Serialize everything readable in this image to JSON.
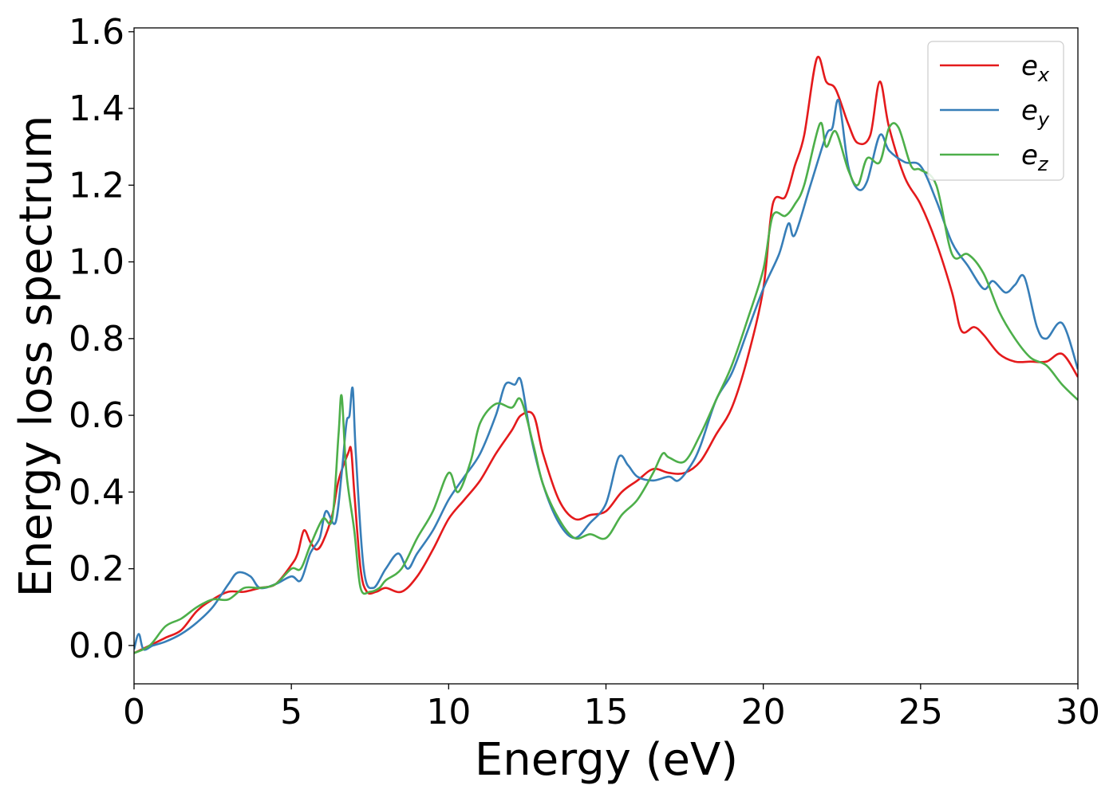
{
  "chart_data": {
    "type": "line",
    "xlabel": "Energy (eV)",
    "ylabel": "Energy loss spectrum",
    "xlim": [
      0,
      30
    ],
    "ylim": [
      -0.1,
      1.61
    ],
    "x_ticks": [
      "0",
      "5",
      "10",
      "15",
      "20",
      "25",
      "30"
    ],
    "y_ticks": [
      "0.0",
      "0.2",
      "0.4",
      "0.6",
      "0.8",
      "1.0",
      "1.2",
      "1.4",
      "1.6"
    ],
    "grid": false,
    "legend_position": "top-right",
    "series": [
      {
        "name": "e",
        "subscript": "x",
        "color": "#e41a1c",
        "points": [
          [
            0,
            -0.02
          ],
          [
            0.5,
            0.0
          ],
          [
            1,
            0.02
          ],
          [
            1.5,
            0.04
          ],
          [
            2,
            0.09
          ],
          [
            2.5,
            0.12
          ],
          [
            3,
            0.14
          ],
          [
            3.5,
            0.14
          ],
          [
            4,
            0.15
          ],
          [
            4.5,
            0.16
          ],
          [
            5,
            0.21
          ],
          [
            5.2,
            0.24
          ],
          [
            5.4,
            0.3
          ],
          [
            5.6,
            0.27
          ],
          [
            5.8,
            0.25
          ],
          [
            6,
            0.27
          ],
          [
            6.3,
            0.34
          ],
          [
            6.5,
            0.43
          ],
          [
            6.8,
            0.5
          ],
          [
            6.9,
            0.51
          ],
          [
            7,
            0.4
          ],
          [
            7.2,
            0.2
          ],
          [
            7.4,
            0.14
          ],
          [
            7.7,
            0.14
          ],
          [
            8,
            0.15
          ],
          [
            8.5,
            0.14
          ],
          [
            9,
            0.18
          ],
          [
            9.5,
            0.25
          ],
          [
            10,
            0.33
          ],
          [
            10.5,
            0.38
          ],
          [
            11,
            0.43
          ],
          [
            11.5,
            0.5
          ],
          [
            12,
            0.56
          ],
          [
            12.3,
            0.6
          ],
          [
            12.7,
            0.6
          ],
          [
            13,
            0.5
          ],
          [
            13.5,
            0.38
          ],
          [
            14,
            0.33
          ],
          [
            14.5,
            0.34
          ],
          [
            15,
            0.35
          ],
          [
            15.5,
            0.4
          ],
          [
            16,
            0.43
          ],
          [
            16.5,
            0.46
          ],
          [
            17,
            0.45
          ],
          [
            17.5,
            0.45
          ],
          [
            18,
            0.48
          ],
          [
            18.5,
            0.55
          ],
          [
            19,
            0.62
          ],
          [
            19.5,
            0.75
          ],
          [
            20,
            0.93
          ],
          [
            20.3,
            1.15
          ],
          [
            20.7,
            1.17
          ],
          [
            21,
            1.25
          ],
          [
            21.3,
            1.33
          ],
          [
            21.7,
            1.53
          ],
          [
            22,
            1.47
          ],
          [
            22.3,
            1.45
          ],
          [
            22.7,
            1.36
          ],
          [
            23,
            1.31
          ],
          [
            23.4,
            1.33
          ],
          [
            23.7,
            1.47
          ],
          [
            24,
            1.35
          ],
          [
            24.5,
            1.22
          ],
          [
            25,
            1.15
          ],
          [
            25.5,
            1.05
          ],
          [
            26,
            0.92
          ],
          [
            26.3,
            0.82
          ],
          [
            26.7,
            0.83
          ],
          [
            27,
            0.81
          ],
          [
            27.5,
            0.76
          ],
          [
            28,
            0.74
          ],
          [
            28.5,
            0.74
          ],
          [
            29,
            0.74
          ],
          [
            29.5,
            0.76
          ],
          [
            30,
            0.7
          ]
        ]
      },
      {
        "name": "e",
        "subscript": "y",
        "color": "#377eb8",
        "points": [
          [
            0,
            -0.01
          ],
          [
            0.15,
            0.03
          ],
          [
            0.3,
            -0.01
          ],
          [
            0.6,
            0.0
          ],
          [
            1,
            0.01
          ],
          [
            1.5,
            0.03
          ],
          [
            2,
            0.06
          ],
          [
            2.5,
            0.1
          ],
          [
            3,
            0.16
          ],
          [
            3.3,
            0.19
          ],
          [
            3.7,
            0.18
          ],
          [
            4,
            0.15
          ],
          [
            4.5,
            0.16
          ],
          [
            5,
            0.18
          ],
          [
            5.3,
            0.17
          ],
          [
            5.6,
            0.24
          ],
          [
            5.9,
            0.28
          ],
          [
            6.1,
            0.35
          ],
          [
            6.4,
            0.32
          ],
          [
            6.6,
            0.45
          ],
          [
            6.75,
            0.58
          ],
          [
            6.85,
            0.6
          ],
          [
            6.95,
            0.67
          ],
          [
            7.05,
            0.5
          ],
          [
            7.3,
            0.2
          ],
          [
            7.6,
            0.15
          ],
          [
            8,
            0.2
          ],
          [
            8.4,
            0.24
          ],
          [
            8.7,
            0.2
          ],
          [
            9,
            0.24
          ],
          [
            9.5,
            0.3
          ],
          [
            10,
            0.38
          ],
          [
            10.5,
            0.44
          ],
          [
            11,
            0.5
          ],
          [
            11.5,
            0.6
          ],
          [
            11.8,
            0.68
          ],
          [
            12.1,
            0.68
          ],
          [
            12.3,
            0.69
          ],
          [
            12.6,
            0.55
          ],
          [
            13,
            0.42
          ],
          [
            13.5,
            0.32
          ],
          [
            14,
            0.28
          ],
          [
            14.5,
            0.32
          ],
          [
            15,
            0.37
          ],
          [
            15.4,
            0.49
          ],
          [
            15.7,
            0.47
          ],
          [
            16,
            0.44
          ],
          [
            16.5,
            0.43
          ],
          [
            17,
            0.44
          ],
          [
            17.3,
            0.43
          ],
          [
            17.7,
            0.47
          ],
          [
            18,
            0.52
          ],
          [
            18.5,
            0.64
          ],
          [
            19,
            0.71
          ],
          [
            19.5,
            0.82
          ],
          [
            20,
            0.93
          ],
          [
            20.5,
            1.02
          ],
          [
            20.8,
            1.1
          ],
          [
            21,
            1.07
          ],
          [
            21.5,
            1.2
          ],
          [
            22,
            1.33
          ],
          [
            22.2,
            1.35
          ],
          [
            22.4,
            1.42
          ],
          [
            22.7,
            1.25
          ],
          [
            23,
            1.19
          ],
          [
            23.3,
            1.21
          ],
          [
            23.7,
            1.33
          ],
          [
            24,
            1.29
          ],
          [
            24.5,
            1.26
          ],
          [
            25,
            1.25
          ],
          [
            25.5,
            1.16
          ],
          [
            26,
            1.05
          ],
          [
            26.5,
            0.99
          ],
          [
            27,
            0.93
          ],
          [
            27.3,
            0.95
          ],
          [
            27.7,
            0.92
          ],
          [
            28,
            0.94
          ],
          [
            28.3,
            0.96
          ],
          [
            28.7,
            0.83
          ],
          [
            29,
            0.8
          ],
          [
            29.5,
            0.84
          ],
          [
            30,
            0.72
          ]
        ]
      },
      {
        "name": "e",
        "subscript": "z",
        "color": "#4daf4a",
        "points": [
          [
            0,
            -0.02
          ],
          [
            0.5,
            0.0
          ],
          [
            1,
            0.05
          ],
          [
            1.5,
            0.07
          ],
          [
            2,
            0.1
          ],
          [
            2.5,
            0.12
          ],
          [
            3,
            0.12
          ],
          [
            3.5,
            0.15
          ],
          [
            4,
            0.15
          ],
          [
            4.5,
            0.16
          ],
          [
            5,
            0.2
          ],
          [
            5.3,
            0.2
          ],
          [
            5.6,
            0.26
          ],
          [
            6,
            0.33
          ],
          [
            6.3,
            0.33
          ],
          [
            6.5,
            0.55
          ],
          [
            6.6,
            0.65
          ],
          [
            6.75,
            0.45
          ],
          [
            7,
            0.3
          ],
          [
            7.2,
            0.15
          ],
          [
            7.5,
            0.14
          ],
          [
            7.8,
            0.15
          ],
          [
            8,
            0.17
          ],
          [
            8.5,
            0.2
          ],
          [
            9,
            0.28
          ],
          [
            9.5,
            0.35
          ],
          [
            10,
            0.45
          ],
          [
            10.3,
            0.4
          ],
          [
            10.7,
            0.48
          ],
          [
            11,
            0.58
          ],
          [
            11.5,
            0.63
          ],
          [
            12,
            0.62
          ],
          [
            12.3,
            0.64
          ],
          [
            12.7,
            0.52
          ],
          [
            13,
            0.42
          ],
          [
            13.5,
            0.33
          ],
          [
            14,
            0.28
          ],
          [
            14.5,
            0.29
          ],
          [
            15,
            0.28
          ],
          [
            15.5,
            0.34
          ],
          [
            16,
            0.38
          ],
          [
            16.5,
            0.45
          ],
          [
            16.8,
            0.5
          ],
          [
            17,
            0.49
          ],
          [
            17.5,
            0.48
          ],
          [
            18,
            0.55
          ],
          [
            18.5,
            0.64
          ],
          [
            19,
            0.73
          ],
          [
            19.5,
            0.85
          ],
          [
            20,
            0.98
          ],
          [
            20.3,
            1.12
          ],
          [
            20.7,
            1.12
          ],
          [
            21,
            1.15
          ],
          [
            21.3,
            1.2
          ],
          [
            21.8,
            1.36
          ],
          [
            22,
            1.3
          ],
          [
            22.3,
            1.34
          ],
          [
            22.7,
            1.24
          ],
          [
            23,
            1.2
          ],
          [
            23.3,
            1.27
          ],
          [
            23.7,
            1.26
          ],
          [
            24,
            1.35
          ],
          [
            24.3,
            1.35
          ],
          [
            24.7,
            1.25
          ],
          [
            25,
            1.24
          ],
          [
            25.5,
            1.2
          ],
          [
            26,
            1.02
          ],
          [
            26.5,
            1.02
          ],
          [
            27,
            0.97
          ],
          [
            27.5,
            0.87
          ],
          [
            28,
            0.8
          ],
          [
            28.5,
            0.75
          ],
          [
            29,
            0.73
          ],
          [
            29.5,
            0.68
          ],
          [
            30,
            0.64
          ]
        ]
      }
    ]
  }
}
